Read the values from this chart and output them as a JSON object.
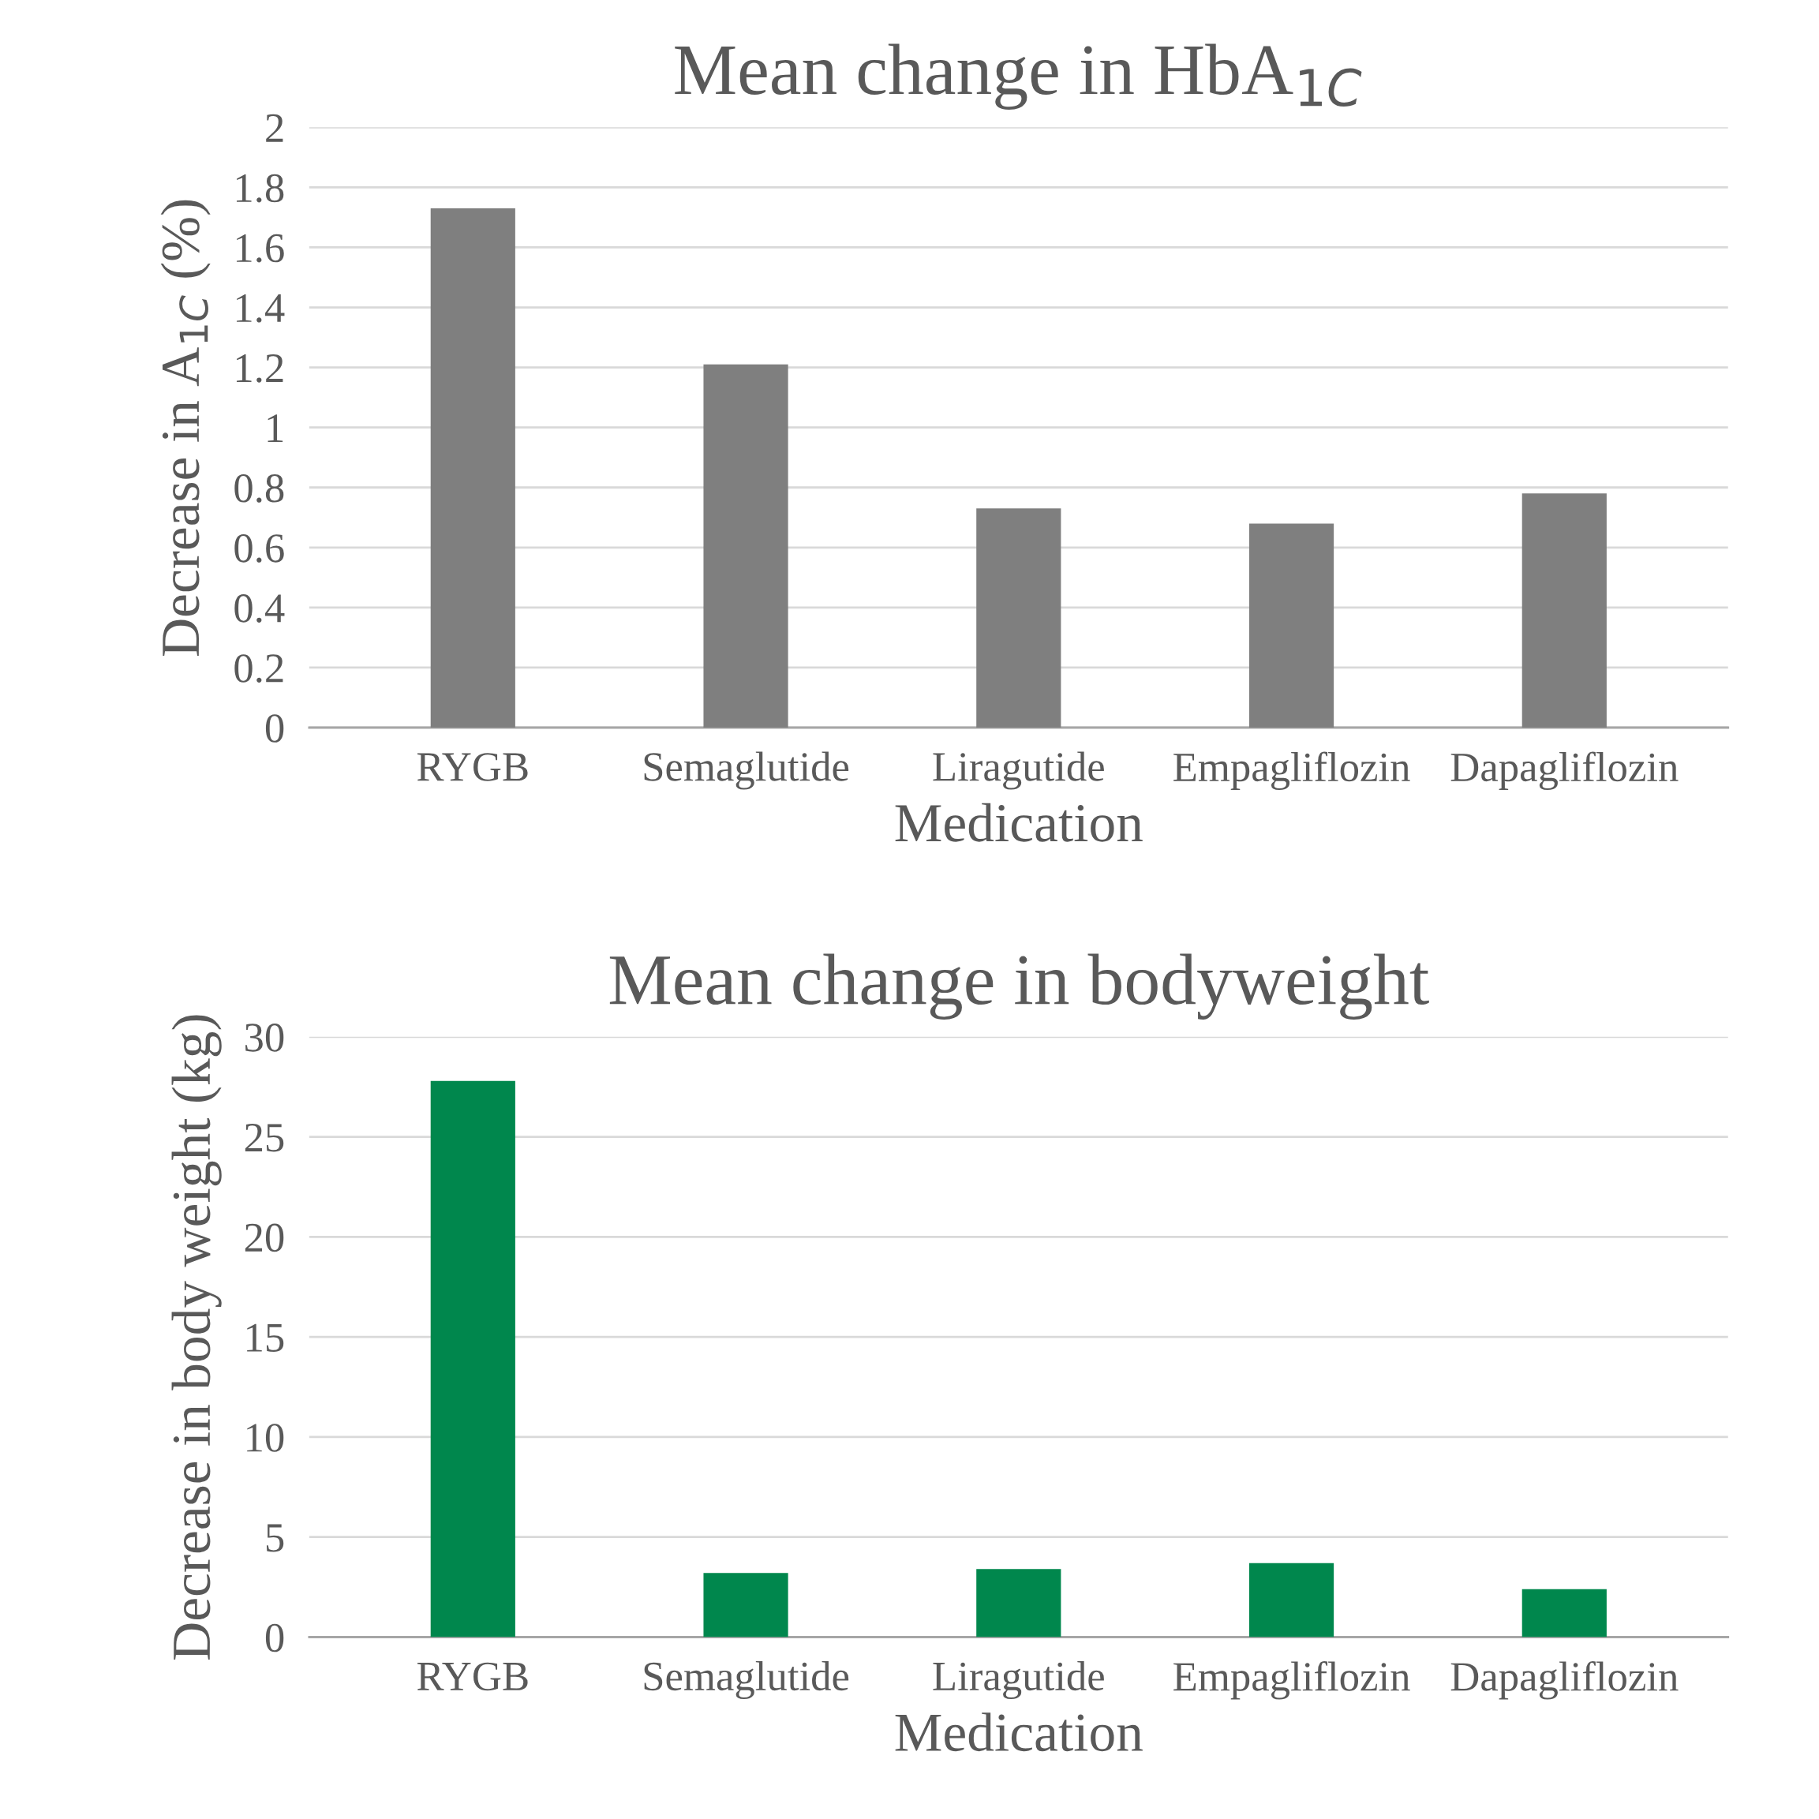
{
  "chart_data": [
    {
      "type": "bar",
      "title": "Mean change in HbA$_{1C}$",
      "xlabel": "Medication",
      "ylabel": "Decrease in A$_{1C}$ (%)",
      "categories": [
        "RYGB",
        "Semaglutide",
        "Liragutide",
        "Empagliflozin",
        "Dapagliflozin"
      ],
      "values": [
        1.73,
        1.21,
        0.73,
        0.68,
        0.78
      ],
      "color": "#7f7f7f",
      "ylim": [
        0,
        2
      ],
      "yticks": [
        0,
        0.2,
        0.4,
        0.6,
        0.8,
        1,
        1.2,
        1.4,
        1.6,
        1.8,
        2
      ],
      "grid": "y",
      "legend": false
    },
    {
      "type": "bar",
      "title": "Mean change in bodyweight",
      "xlabel": "Medication",
      "ylabel": "Decrease in body weight (kg)",
      "categories": [
        "RYGB",
        "Semaglutide",
        "Liragutide",
        "Empagliflozin",
        "Dapagliflozin"
      ],
      "values": [
        27.8,
        3.2,
        3.4,
        3.7,
        2.4
      ],
      "color": "#00874d",
      "ylim": [
        0,
        30
      ],
      "yticks": [
        0,
        5,
        10,
        15,
        20,
        25,
        30
      ],
      "grid": "y",
      "legend": false
    }
  ]
}
